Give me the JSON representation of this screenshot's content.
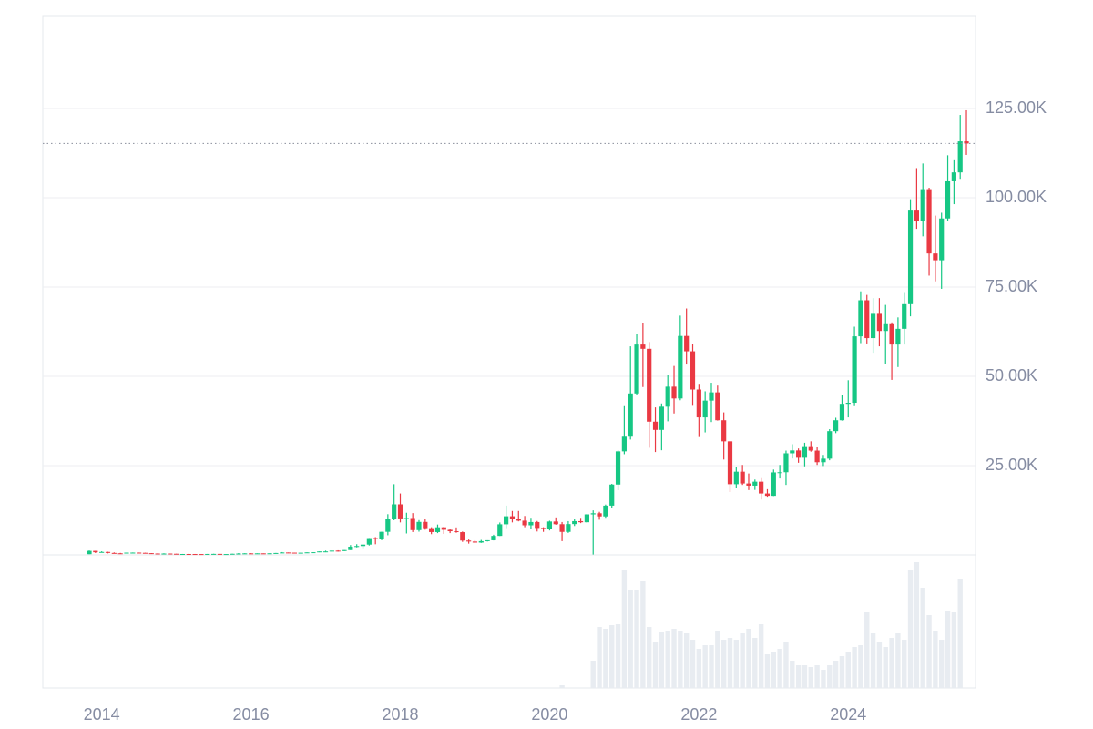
{
  "chart_data": {
    "type": "candlestick",
    "x": [
      "2013-11",
      "2013-12",
      "2014-01",
      "2014-02",
      "2014-03",
      "2014-04",
      "2014-05",
      "2014-06",
      "2014-07",
      "2014-08",
      "2014-09",
      "2014-10",
      "2014-11",
      "2014-12",
      "2015-01",
      "2015-02",
      "2015-03",
      "2015-04",
      "2015-05",
      "2015-06",
      "2015-07",
      "2015-08",
      "2015-09",
      "2015-10",
      "2015-11",
      "2015-12",
      "2016-01",
      "2016-02",
      "2016-03",
      "2016-04",
      "2016-05",
      "2016-06",
      "2016-07",
      "2016-08",
      "2016-09",
      "2016-10",
      "2016-11",
      "2016-12",
      "2017-01",
      "2017-02",
      "2017-03",
      "2017-04",
      "2017-05",
      "2017-06",
      "2017-07",
      "2017-08",
      "2017-09",
      "2017-10",
      "2017-11",
      "2017-12",
      "2018-01",
      "2018-02",
      "2018-03",
      "2018-04",
      "2018-05",
      "2018-06",
      "2018-07",
      "2018-08",
      "2018-09",
      "2018-10",
      "2018-11",
      "2018-12",
      "2019-01",
      "2019-02",
      "2019-03",
      "2019-04",
      "2019-05",
      "2019-06",
      "2019-07",
      "2019-08",
      "2019-09",
      "2019-10",
      "2019-11",
      "2019-12",
      "2020-01",
      "2020-02",
      "2020-03",
      "2020-04",
      "2020-05",
      "2020-06",
      "2020-07",
      "2020-08",
      "2020-09",
      "2020-10",
      "2020-11",
      "2020-12",
      "2021-01",
      "2021-02",
      "2021-03",
      "2021-04",
      "2021-05",
      "2021-06",
      "2021-07",
      "2021-08",
      "2021-09",
      "2021-10",
      "2021-11",
      "2021-12",
      "2022-01",
      "2022-02",
      "2022-03",
      "2022-04",
      "2022-05",
      "2022-06",
      "2022-07",
      "2022-08",
      "2022-09",
      "2022-10",
      "2022-11",
      "2022-12",
      "2023-01",
      "2023-02",
      "2023-03",
      "2023-04",
      "2023-05",
      "2023-06",
      "2023-07",
      "2023-08",
      "2023-09",
      "2023-10",
      "2023-11",
      "2023-12",
      "2024-01",
      "2024-02",
      "2024-03",
      "2024-04",
      "2024-05",
      "2024-06",
      "2024-07",
      "2024-08",
      "2024-09",
      "2024-10",
      "2024-11",
      "2024-12",
      "2025-01",
      "2025-02",
      "2025-03",
      "2025-04",
      "2025-05",
      "2025-06",
      "2025-07",
      "2025-08"
    ],
    "open": [
      200,
      1130,
      730,
      820,
      550,
      450,
      440,
      630,
      640,
      580,
      480,
      390,
      340,
      380,
      320,
      220,
      255,
      245,
      235,
      230,
      265,
      285,
      230,
      235,
      315,
      380,
      430,
      370,
      435,
      415,
      450,
      530,
      670,
      625,
      575,
      610,
      700,
      745,
      965,
      970,
      1190,
      1080,
      1350,
      2300,
      2480,
      2880,
      4700,
      4340,
      6460,
      9950,
      14160,
      10220,
      10330,
      6940,
      9240,
      7490,
      6390,
      7730,
      7030,
      6630,
      6370,
      4020,
      3740,
      3450,
      3850,
      4100,
      5320,
      8570,
      10820,
      10080,
      9590,
      8290,
      9200,
      7550,
      7190,
      9350,
      8600,
      6440,
      8630,
      9450,
      9140,
      11350,
      11660,
      10780,
      13800,
      19700,
      28990,
      33100,
      45200,
      58900,
      57700,
      37300,
      35000,
      41500,
      47100,
      43800,
      61300,
      57000,
      46300,
      38500,
      43200,
      45500,
      37700,
      31800,
      19800,
      23300,
      20000,
      19400,
      20500,
      17200,
      16550,
      23100,
      23150,
      28450,
      29250,
      27200,
      30450,
      29200,
      25950,
      26950,
      34650,
      37700,
      42300,
      42600,
      61200,
      71300,
      60700,
      67500,
      62700,
      64600,
      58900,
      63300,
      70200,
      96400,
      93400,
      102400,
      84400,
      82500,
      94200,
      104600,
      107100,
      115800
    ],
    "high": [
      1240,
      1150,
      1000,
      870,
      700,
      560,
      640,
      680,
      660,
      600,
      510,
      420,
      460,
      390,
      320,
      270,
      300,
      265,
      250,
      270,
      320,
      285,
      250,
      335,
      500,
      470,
      460,
      445,
      440,
      470,
      550,
      780,
      680,
      630,
      630,
      720,
      755,
      980,
      1190,
      1200,
      1290,
      1350,
      2760,
      2990,
      2930,
      4740,
      4980,
      6470,
      11400,
      19800,
      17200,
      11800,
      11700,
      9750,
      9990,
      7750,
      8500,
      7870,
      7390,
      7700,
      6550,
      4300,
      4100,
      4200,
      4100,
      5640,
      9070,
      13800,
      12300,
      12300,
      10900,
      10400,
      9500,
      7750,
      9580,
      10500,
      9200,
      9450,
      10070,
      10380,
      11440,
      12470,
      12060,
      14100,
      19900,
      29300,
      41900,
      58400,
      61800,
      64900,
      59600,
      41300,
      42400,
      50500,
      52900,
      67000,
      69000,
      59000,
      47900,
      45800,
      48200,
      47400,
      39900,
      31900,
      24700,
      25200,
      22800,
      21100,
      21500,
      18400,
      23900,
      25200,
      29200,
      31000,
      29800,
      31400,
      31800,
      30200,
      28000,
      35200,
      38400,
      44700,
      48900,
      63900,
      73800,
      72800,
      71900,
      71900,
      70000,
      65100,
      66500,
      73600,
      99600,
      108300,
      109600,
      102800,
      95000,
      95800,
      111900,
      110500,
      123200,
      124500
    ],
    "low": [
      200,
      520,
      730,
      420,
      440,
      340,
      420,
      550,
      570,
      440,
      380,
      330,
      320,
      310,
      165,
      210,
      240,
      215,
      225,
      220,
      260,
      200,
      225,
      235,
      310,
      350,
      350,
      365,
      405,
      410,
      445,
      520,
      480,
      540,
      575,
      605,
      695,
      740,
      750,
      920,
      890,
      1060,
      1340,
      2100,
      1840,
      2620,
      2980,
      4100,
      5500,
      9700,
      9100,
      6000,
      6400,
      6500,
      7050,
      5800,
      6100,
      5880,
      6100,
      6200,
      3650,
      3150,
      3350,
      3350,
      3750,
      4050,
      5300,
      7500,
      9100,
      9400,
      7750,
      7300,
      6550,
      6450,
      6850,
      8450,
      3850,
      6150,
      8100,
      8900,
      9000,
      100,
      9850,
      10400,
      13200,
      18100,
      28200,
      32300,
      44900,
      47000,
      30000,
      28800,
      29300,
      37400,
      39600,
      43300,
      53300,
      42000,
      33000,
      34300,
      37200,
      37600,
      26700,
      17600,
      18800,
      19600,
      18150,
      18200,
      15500,
      16300,
      16500,
      21400,
      19600,
      27000,
      25800,
      24800,
      28900,
      25200,
      24900,
      26500,
      34100,
      37600,
      38500,
      41900,
      59300,
      59200,
      56600,
      58400,
      53500,
      49000,
      52600,
      58900,
      66800,
      91300,
      89200,
      78200,
      76600,
      74500,
      93400,
      98200,
      105300,
      112000
    ],
    "close": [
      1130,
      730,
      820,
      550,
      450,
      440,
      630,
      640,
      580,
      480,
      390,
      340,
      380,
      320,
      220,
      255,
      245,
      235,
      230,
      265,
      285,
      230,
      235,
      315,
      380,
      430,
      370,
      435,
      415,
      450,
      530,
      670,
      625,
      575,
      610,
      700,
      745,
      965,
      970,
      1190,
      1080,
      1350,
      2300,
      2480,
      2880,
      4700,
      4340,
      6460,
      9950,
      14160,
      10220,
      10330,
      6940,
      9240,
      7490,
      6390,
      7730,
      7030,
      6630,
      6370,
      4020,
      3740,
      3450,
      3850,
      4100,
      5320,
      8570,
      10820,
      10080,
      9590,
      8290,
      9200,
      7550,
      7190,
      9350,
      8600,
      6440,
      8630,
      9450,
      9140,
      11350,
      11660,
      10780,
      13800,
      19700,
      28990,
      33100,
      45200,
      58900,
      57700,
      37300,
      35000,
      41500,
      47100,
      43800,
      61300,
      57000,
      46300,
      38500,
      43200,
      45500,
      37700,
      31800,
      19800,
      23300,
      20000,
      19400,
      20500,
      17200,
      16550,
      23100,
      23150,
      28450,
      29250,
      27200,
      30450,
      29200,
      25950,
      26950,
      34650,
      37700,
      42300,
      42600,
      61200,
      71300,
      60700,
      67500,
      62700,
      64600,
      58900,
      63300,
      70200,
      96400,
      93400,
      102400,
      84400,
      82500,
      94200,
      104600,
      107100,
      115800,
      115200
    ],
    "volume": [
      0,
      0,
      0,
      0,
      0,
      0,
      0,
      0,
      0,
      0,
      0,
      0,
      0,
      0,
      0,
      0,
      0,
      0,
      0,
      0,
      0,
      0,
      0,
      0,
      0,
      0,
      0,
      0,
      0,
      0,
      0,
      0,
      0,
      0,
      0,
      0,
      0,
      0,
      0,
      0,
      0,
      0,
      0,
      0,
      0,
      0,
      0,
      0,
      0,
      0,
      0,
      0,
      0,
      0,
      0,
      0,
      0,
      0,
      0,
      0,
      0,
      0,
      0,
      0,
      0,
      0,
      0,
      0,
      0,
      0,
      0,
      0,
      0,
      0,
      0,
      0,
      3,
      0,
      0,
      0,
      0,
      30,
      67,
      65,
      69,
      70,
      129,
      107,
      107,
      117,
      67,
      50,
      61,
      63,
      65,
      63,
      60,
      53,
      43,
      47,
      47,
      62,
      53,
      55,
      53,
      60,
      65,
      55,
      70,
      37,
      40,
      43,
      50,
      30,
      25,
      25,
      23,
      25,
      20,
      25,
      30,
      35,
      40,
      45,
      47,
      83,
      60,
      50,
      45,
      55,
      60,
      53,
      129,
      138,
      110,
      80,
      63,
      53,
      85,
      83,
      120,
      null
    ],
    "up_color": "#16c784",
    "down_color": "#ea3943",
    "volume_color": "#e8ecf1",
    "ylim": [
      0,
      150000
    ],
    "yticks": [
      {
        "value": 25000,
        "label": "25.00K"
      },
      {
        "value": 50000,
        "label": "50.00K"
      },
      {
        "value": 75000,
        "label": "75.00K"
      },
      {
        "value": 100000,
        "label": "100.00K"
      },
      {
        "value": 125000,
        "label": "125.00K"
      }
    ],
    "volume_lim": [
      0,
      146
    ],
    "xticks": [
      2014,
      2016,
      2018,
      2020,
      2022,
      2024
    ],
    "grid": true,
    "last_price_line": true
  }
}
